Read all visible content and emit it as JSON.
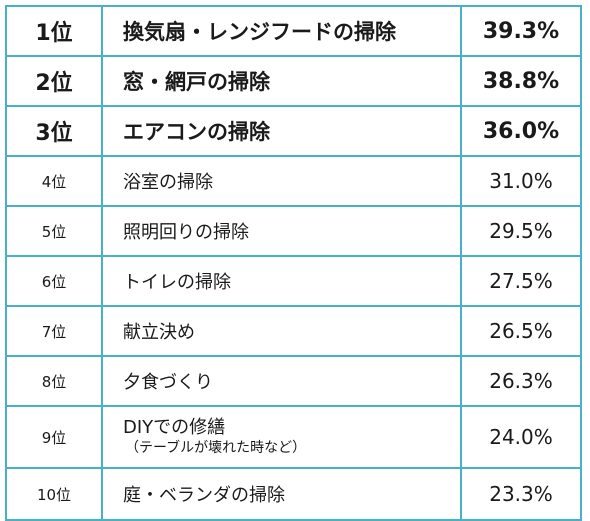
{
  "rows": [
    {
      "rank": "1位",
      "item": "換気扇・レンジフードの掃除",
      "sub": "",
      "pct": "39.3%"
    },
    {
      "rank": "2位",
      "item": "窓・網戸の掃除",
      "sub": "",
      "pct": "38.8%"
    },
    {
      "rank": "3位",
      "item": "エアコンの掃除",
      "sub": "",
      "pct": "36.0%"
    },
    {
      "rank": "4位",
      "item": "浴室の掃除",
      "sub": "",
      "pct": "31.0%"
    },
    {
      "rank": "5位",
      "item": "照明回りの掃除",
      "sub": "",
      "pct": "29.5%"
    },
    {
      "rank": "6位",
      "item": "トイレの掃除",
      "sub": "",
      "pct": "27.5%"
    },
    {
      "rank": "7位",
      "item": "献立決め",
      "sub": "",
      "pct": "26.5%"
    },
    {
      "rank": "8位",
      "item": "夕食づくり",
      "sub": "",
      "pct": "26.3%"
    },
    {
      "rank": "9位",
      "item": "DIYでの修繕",
      "sub": "（テーブルが壊れた時など）",
      "pct": "24.0%"
    },
    {
      "rank": "10位",
      "item": "庭・ベランダの掃除",
      "sub": "",
      "pct": "23.3%"
    }
  ],
  "colors": {
    "border": "#48b0c8",
    "text": "#1a1a1a",
    "background": "#ffffff"
  }
}
